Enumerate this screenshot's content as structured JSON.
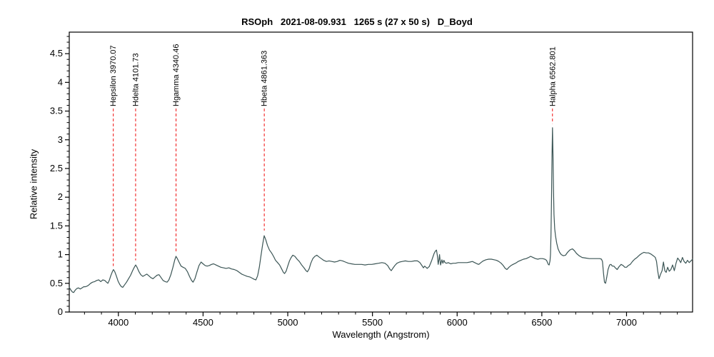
{
  "chart_data": {
    "type": "line",
    "title": "RSOph   2021-08-09.931   1265 s (27 x 50 s)   D_Boyd",
    "xlabel": "Wavelength (Angstrom)",
    "ylabel": "Relative intensity",
    "xlim": [
      3710,
      7390
    ],
    "ylim": [
      0,
      4.875
    ],
    "x_major_ticks": [
      4000,
      4500,
      5000,
      5500,
      6000,
      6500,
      7000
    ],
    "x_minor_step": 100,
    "y_major_ticks": [
      0,
      0.5,
      1,
      1.5,
      2,
      2.5,
      3,
      3.5,
      4,
      4.5
    ],
    "y_minor_step": 0.1,
    "grid": false,
    "legend": "none",
    "line_color": "#3b5555",
    "marker_color": "#f01010",
    "axis_color": "#000000",
    "spectral_lines": [
      {
        "label": "Hepsilon 3970.07",
        "wavelength": 3970.07,
        "marker_bottom_intensity": 0.8
      },
      {
        "label": "Hdelta 4101.73",
        "wavelength": 4101.73,
        "marker_bottom_intensity": 0.9
      },
      {
        "label": "Hgamma 4340.46",
        "wavelength": 4340.46,
        "marker_bottom_intensity": 1.02
      },
      {
        "label": "Hbeta 4861.363",
        "wavelength": 4861.363,
        "marker_bottom_intensity": 1.42
      },
      {
        "label": "Halpha 6562.801",
        "wavelength": 6562.801,
        "marker_bottom_intensity": 3.28
      }
    ],
    "points": [
      [
        3710,
        0.43
      ],
      [
        3720,
        0.38
      ],
      [
        3728,
        0.35
      ],
      [
        3736,
        0.34
      ],
      [
        3745,
        0.38
      ],
      [
        3755,
        0.41
      ],
      [
        3765,
        0.42
      ],
      [
        3775,
        0.4
      ],
      [
        3785,
        0.42
      ],
      [
        3795,
        0.44
      ],
      [
        3805,
        0.44
      ],
      [
        3815,
        0.45
      ],
      [
        3825,
        0.47
      ],
      [
        3836,
        0.5
      ],
      [
        3848,
        0.52
      ],
      [
        3860,
        0.53
      ],
      [
        3872,
        0.55
      ],
      [
        3884,
        0.56
      ],
      [
        3896,
        0.53
      ],
      [
        3908,
        0.56
      ],
      [
        3920,
        0.55
      ],
      [
        3930,
        0.52
      ],
      [
        3938,
        0.5
      ],
      [
        3946,
        0.55
      ],
      [
        3955,
        0.63
      ],
      [
        3964,
        0.7
      ],
      [
        3971,
        0.74
      ],
      [
        3979,
        0.7
      ],
      [
        3988,
        0.63
      ],
      [
        3998,
        0.54
      ],
      [
        4008,
        0.48
      ],
      [
        4018,
        0.44
      ],
      [
        4026,
        0.43
      ],
      [
        4036,
        0.47
      ],
      [
        4048,
        0.52
      ],
      [
        4060,
        0.58
      ],
      [
        4072,
        0.64
      ],
      [
        4084,
        0.72
      ],
      [
        4094,
        0.78
      ],
      [
        4102,
        0.82
      ],
      [
        4110,
        0.78
      ],
      [
        4120,
        0.71
      ],
      [
        4132,
        0.65
      ],
      [
        4144,
        0.62
      ],
      [
        4156,
        0.64
      ],
      [
        4168,
        0.66
      ],
      [
        4180,
        0.63
      ],
      [
        4192,
        0.6
      ],
      [
        4204,
        0.58
      ],
      [
        4216,
        0.61
      ],
      [
        4228,
        0.64
      ],
      [
        4240,
        0.65
      ],
      [
        4252,
        0.6
      ],
      [
        4264,
        0.55
      ],
      [
        4276,
        0.53
      ],
      [
        4288,
        0.52
      ],
      [
        4298,
        0.56
      ],
      [
        4310,
        0.65
      ],
      [
        4322,
        0.78
      ],
      [
        4332,
        0.9
      ],
      [
        4340,
        0.97
      ],
      [
        4348,
        0.93
      ],
      [
        4358,
        0.87
      ],
      [
        4370,
        0.8
      ],
      [
        4382,
        0.78
      ],
      [
        4395,
        0.76
      ],
      [
        4408,
        0.7
      ],
      [
        4420,
        0.62
      ],
      [
        4432,
        0.55
      ],
      [
        4441,
        0.52
      ],
      [
        4452,
        0.58
      ],
      [
        4464,
        0.7
      ],
      [
        4476,
        0.81
      ],
      [
        4488,
        0.87
      ],
      [
        4500,
        0.84
      ],
      [
        4512,
        0.81
      ],
      [
        4524,
        0.8
      ],
      [
        4536,
        0.81
      ],
      [
        4550,
        0.83
      ],
      [
        4562,
        0.84
      ],
      [
        4576,
        0.82
      ],
      [
        4590,
        0.8
      ],
      [
        4605,
        0.78
      ],
      [
        4620,
        0.77
      ],
      [
        4636,
        0.76
      ],
      [
        4652,
        0.77
      ],
      [
        4668,
        0.75
      ],
      [
        4684,
        0.74
      ],
      [
        4700,
        0.72
      ],
      [
        4714,
        0.69
      ],
      [
        4728,
        0.66
      ],
      [
        4744,
        0.64
      ],
      [
        4760,
        0.62
      ],
      [
        4776,
        0.61
      ],
      [
        4790,
        0.59
      ],
      [
        4802,
        0.57
      ],
      [
        4812,
        0.56
      ],
      [
        4822,
        0.63
      ],
      [
        4832,
        0.78
      ],
      [
        4842,
        0.98
      ],
      [
        4852,
        1.18
      ],
      [
        4861,
        1.33
      ],
      [
        4870,
        1.26
      ],
      [
        4880,
        1.16
      ],
      [
        4892,
        1.08
      ],
      [
        4904,
        1.03
      ],
      [
        4916,
        0.97
      ],
      [
        4928,
        0.9
      ],
      [
        4940,
        0.86
      ],
      [
        4952,
        0.82
      ],
      [
        4964,
        0.75
      ],
      [
        4974,
        0.69
      ],
      [
        4981,
        0.67
      ],
      [
        4990,
        0.71
      ],
      [
        5000,
        0.8
      ],
      [
        5010,
        0.89
      ],
      [
        5020,
        0.95
      ],
      [
        5030,
        0.99
      ],
      [
        5042,
        0.97
      ],
      [
        5055,
        0.92
      ],
      [
        5068,
        0.88
      ],
      [
        5082,
        0.82
      ],
      [
        5096,
        0.77
      ],
      [
        5108,
        0.72
      ],
      [
        5116,
        0.7
      ],
      [
        5126,
        0.75
      ],
      [
        5136,
        0.85
      ],
      [
        5148,
        0.93
      ],
      [
        5160,
        0.97
      ],
      [
        5172,
        0.99
      ],
      [
        5184,
        0.96
      ],
      [
        5198,
        0.93
      ],
      [
        5212,
        0.9
      ],
      [
        5228,
        0.88
      ],
      [
        5244,
        0.89
      ],
      [
        5260,
        0.88
      ],
      [
        5276,
        0.87
      ],
      [
        5292,
        0.88
      ],
      [
        5308,
        0.9
      ],
      [
        5324,
        0.89
      ],
      [
        5340,
        0.87
      ],
      [
        5358,
        0.85
      ],
      [
        5376,
        0.84
      ],
      [
        5396,
        0.83
      ],
      [
        5416,
        0.83
      ],
      [
        5436,
        0.83
      ],
      [
        5456,
        0.82
      ],
      [
        5476,
        0.83
      ],
      [
        5496,
        0.83
      ],
      [
        5516,
        0.84
      ],
      [
        5536,
        0.85
      ],
      [
        5556,
        0.86
      ],
      [
        5574,
        0.85
      ],
      [
        5590,
        0.81
      ],
      [
        5602,
        0.75
      ],
      [
        5611,
        0.72
      ],
      [
        5620,
        0.76
      ],
      [
        5632,
        0.81
      ],
      [
        5645,
        0.85
      ],
      [
        5660,
        0.87
      ],
      [
        5676,
        0.88
      ],
      [
        5694,
        0.89
      ],
      [
        5712,
        0.88
      ],
      [
        5730,
        0.88
      ],
      [
        5748,
        0.89
      ],
      [
        5766,
        0.89
      ],
      [
        5780,
        0.86
      ],
      [
        5792,
        0.81
      ],
      [
        5801,
        0.77
      ],
      [
        5808,
        0.8
      ],
      [
        5816,
        0.78
      ],
      [
        5823,
        0.76
      ],
      [
        5830,
        0.78
      ],
      [
        5835,
        0.79
      ],
      [
        5850,
        0.9
      ],
      [
        5864,
        1.02
      ],
      [
        5871,
        1.06
      ],
      [
        5878,
        1.08
      ],
      [
        5884,
        0.97
      ],
      [
        5888,
        0.83
      ],
      [
        5893,
        0.92
      ],
      [
        5896,
        1.0
      ],
      [
        5902,
        0.82
      ],
      [
        5910,
        0.91
      ],
      [
        5916,
        0.85
      ],
      [
        5922,
        0.9
      ],
      [
        5928,
        0.86
      ],
      [
        5938,
        0.85
      ],
      [
        5948,
        0.86
      ],
      [
        5962,
        0.84
      ],
      [
        5976,
        0.85
      ],
      [
        5990,
        0.85
      ],
      [
        6006,
        0.86
      ],
      [
        6022,
        0.86
      ],
      [
        6040,
        0.86
      ],
      [
        6058,
        0.86
      ],
      [
        6076,
        0.87
      ],
      [
        6090,
        0.88
      ],
      [
        6104,
        0.86
      ],
      [
        6118,
        0.84
      ],
      [
        6128,
        0.83
      ],
      [
        6140,
        0.86
      ],
      [
        6154,
        0.89
      ],
      [
        6170,
        0.91
      ],
      [
        6186,
        0.92
      ],
      [
        6202,
        0.92
      ],
      [
        6218,
        0.91
      ],
      [
        6232,
        0.9
      ],
      [
        6246,
        0.88
      ],
      [
        6260,
        0.85
      ],
      [
        6272,
        0.81
      ],
      [
        6284,
        0.76
      ],
      [
        6294,
        0.74
      ],
      [
        6306,
        0.78
      ],
      [
        6318,
        0.81
      ],
      [
        6330,
        0.83
      ],
      [
        6344,
        0.85
      ],
      [
        6360,
        0.88
      ],
      [
        6376,
        0.9
      ],
      [
        6392,
        0.92
      ],
      [
        6408,
        0.93
      ],
      [
        6422,
        0.95
      ],
      [
        6434,
        0.97
      ],
      [
        6448,
        0.95
      ],
      [
        6462,
        0.93
      ],
      [
        6476,
        0.92
      ],
      [
        6490,
        0.93
      ],
      [
        6504,
        0.93
      ],
      [
        6518,
        0.92
      ],
      [
        6528,
        0.9
      ],
      [
        6538,
        0.83
      ],
      [
        6543,
        0.82
      ],
      [
        6548,
        0.89
      ],
      [
        6551,
        1.0
      ],
      [
        6554,
        1.35
      ],
      [
        6557,
        1.95
      ],
      [
        6560,
        2.7
      ],
      [
        6563,
        3.21
      ],
      [
        6566,
        2.75
      ],
      [
        6569,
        2.15
      ],
      [
        6572,
        1.7
      ],
      [
        6576,
        1.45
      ],
      [
        6581,
        1.32
      ],
      [
        6588,
        1.2
      ],
      [
        6596,
        1.1
      ],
      [
        6605,
        1.04
      ],
      [
        6615,
        1.0
      ],
      [
        6627,
        0.98
      ],
      [
        6640,
        0.99
      ],
      [
        6652,
        1.04
      ],
      [
        6665,
        1.08
      ],
      [
        6680,
        1.1
      ],
      [
        6692,
        1.07
      ],
      [
        6705,
        1.02
      ],
      [
        6720,
        0.98
      ],
      [
        6738,
        0.95
      ],
      [
        6758,
        0.94
      ],
      [
        6780,
        0.93
      ],
      [
        6800,
        0.93
      ],
      [
        6822,
        0.93
      ],
      [
        6842,
        0.93
      ],
      [
        6852,
        0.92
      ],
      [
        6858,
        0.88
      ],
      [
        6864,
        0.68
      ],
      [
        6870,
        0.52
      ],
      [
        6876,
        0.5
      ],
      [
        6883,
        0.6
      ],
      [
        6891,
        0.74
      ],
      [
        6900,
        0.82
      ],
      [
        6908,
        0.83
      ],
      [
        6916,
        0.8
      ],
      [
        6925,
        0.8
      ],
      [
        6934,
        0.77
      ],
      [
        6945,
        0.74
      ],
      [
        6956,
        0.79
      ],
      [
        6968,
        0.83
      ],
      [
        6980,
        0.81
      ],
      [
        6990,
        0.78
      ],
      [
        7000,
        0.78
      ],
      [
        7010,
        0.81
      ],
      [
        7022,
        0.83
      ],
      [
        7035,
        0.88
      ],
      [
        7048,
        0.92
      ],
      [
        7062,
        0.95
      ],
      [
        7076,
        0.99
      ],
      [
        7090,
        1.02
      ],
      [
        7103,
        1.04
      ],
      [
        7116,
        1.03
      ],
      [
        7130,
        1.03
      ],
      [
        7144,
        1.01
      ],
      [
        7158,
        0.98
      ],
      [
        7170,
        0.95
      ],
      [
        7177,
        0.88
      ],
      [
        7184,
        0.72
      ],
      [
        7192,
        0.58
      ],
      [
        7200,
        0.65
      ],
      [
        7210,
        0.72
      ],
      [
        7218,
        0.87
      ],
      [
        7226,
        0.72
      ],
      [
        7234,
        0.69
      ],
      [
        7243,
        0.78
      ],
      [
        7252,
        0.71
      ],
      [
        7262,
        0.74
      ],
      [
        7272,
        0.82
      ],
      [
        7282,
        0.72
      ],
      [
        7292,
        0.85
      ],
      [
        7302,
        0.94
      ],
      [
        7312,
        0.9
      ],
      [
        7320,
        0.86
      ],
      [
        7330,
        0.95
      ],
      [
        7340,
        0.88
      ],
      [
        7350,
        0.85
      ],
      [
        7360,
        0.9
      ],
      [
        7370,
        0.86
      ],
      [
        7380,
        0.89
      ],
      [
        7390,
        0.92
      ]
    ]
  }
}
